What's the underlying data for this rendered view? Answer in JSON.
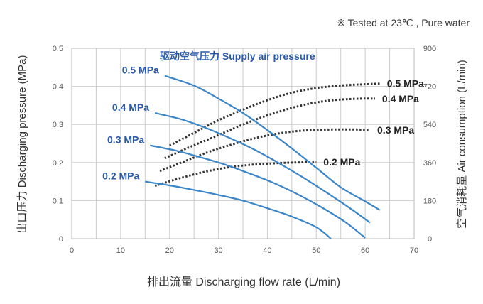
{
  "chart_data": {
    "type": "line",
    "note": "※  Tested at  23℃ , Pure water",
    "title": "驱动空气压力 Supply air pressure",
    "xlabel": "排出流量  Discharging flow rate (L/min)",
    "ylabel_left": "出口压力 Discharging pressure (MPa)",
    "ylabel_right": "空气消耗量 Air consumption (L/min)",
    "xlim": [
      0,
      70
    ],
    "ylim_left": [
      0,
      0.5
    ],
    "ylim_right": [
      0,
      900
    ],
    "x_ticks": [
      "0",
      "10",
      "20",
      "30",
      "40",
      "50",
      "60",
      "70"
    ],
    "y_ticks_left": [
      "0",
      "0.1",
      "0.2",
      "0.3",
      "0.4",
      "0.5"
    ],
    "y_ticks_right": [
      "0",
      "180",
      "360",
      "540",
      "720",
      "900"
    ],
    "grid": true,
    "colors": {
      "pressure": "#3a86c8",
      "air": "#333333",
      "label_blue": "#2a5aa8",
      "label_dark": "#222222",
      "grid": "#cccccc"
    },
    "pressure_series": [
      {
        "name": "0.5 MPa",
        "points": [
          [
            19,
            0.428
          ],
          [
            25,
            0.402
          ],
          [
            30,
            0.368
          ],
          [
            35,
            0.33
          ],
          [
            40,
            0.285
          ],
          [
            45,
            0.237
          ],
          [
            50,
            0.186
          ],
          [
            55,
            0.135
          ],
          [
            60,
            0.098
          ],
          [
            63,
            0.075
          ]
        ]
      },
      {
        "name": "0.4 MPa",
        "points": [
          [
            17,
            0.33
          ],
          [
            22,
            0.315
          ],
          [
            27,
            0.293
          ],
          [
            32,
            0.266
          ],
          [
            37,
            0.236
          ],
          [
            42,
            0.201
          ],
          [
            47,
            0.163
          ],
          [
            52,
            0.122
          ],
          [
            57,
            0.079
          ],
          [
            61,
            0.042
          ]
        ]
      },
      {
        "name": "0.3 MPa",
        "points": [
          [
            16,
            0.245
          ],
          [
            21,
            0.232
          ],
          [
            26,
            0.215
          ],
          [
            31,
            0.196
          ],
          [
            36,
            0.173
          ],
          [
            41,
            0.148
          ],
          [
            46,
            0.118
          ],
          [
            51,
            0.083
          ],
          [
            56,
            0.043
          ],
          [
            60,
            0.002
          ]
        ]
      },
      {
        "name": "0.2 MPa",
        "points": [
          [
            15,
            0.15
          ],
          [
            20,
            0.14
          ],
          [
            25,
            0.128
          ],
          [
            30,
            0.115
          ],
          [
            35,
            0.1
          ],
          [
            40,
            0.08
          ],
          [
            45,
            0.058
          ],
          [
            50,
            0.03
          ],
          [
            53,
            0.0
          ]
        ]
      }
    ],
    "air_series": [
      {
        "name": "0.5 MPa",
        "points": [
          [
            20,
            440
          ],
          [
            25,
            500
          ],
          [
            30,
            560
          ],
          [
            35,
            610
          ],
          [
            40,
            655
          ],
          [
            45,
            690
          ],
          [
            50,
            712
          ],
          [
            55,
            724
          ],
          [
            60,
            730
          ],
          [
            63,
            733
          ]
        ]
      },
      {
        "name": "0.4 MPa",
        "points": [
          [
            19,
            380
          ],
          [
            24,
            432
          ],
          [
            29,
            480
          ],
          [
            34,
            530
          ],
          [
            39,
            575
          ],
          [
            44,
            612
          ],
          [
            49,
            640
          ],
          [
            54,
            656
          ],
          [
            59,
            662
          ],
          [
            62,
            662
          ]
        ]
      },
      {
        "name": "0.3 MPa",
        "points": [
          [
            18,
            320
          ],
          [
            23,
            365
          ],
          [
            28,
            410
          ],
          [
            33,
            447
          ],
          [
            38,
            478
          ],
          [
            43,
            500
          ],
          [
            48,
            512
          ],
          [
            53,
            516
          ],
          [
            58,
            516
          ],
          [
            61,
            514
          ]
        ]
      },
      {
        "name": "0.2 MPa",
        "points": [
          [
            17,
            250
          ],
          [
            22,
            285
          ],
          [
            27,
            315
          ],
          [
            32,
            337
          ],
          [
            37,
            350
          ],
          [
            42,
            357
          ],
          [
            47,
            361
          ],
          [
            50,
            362
          ]
        ]
      }
    ]
  }
}
